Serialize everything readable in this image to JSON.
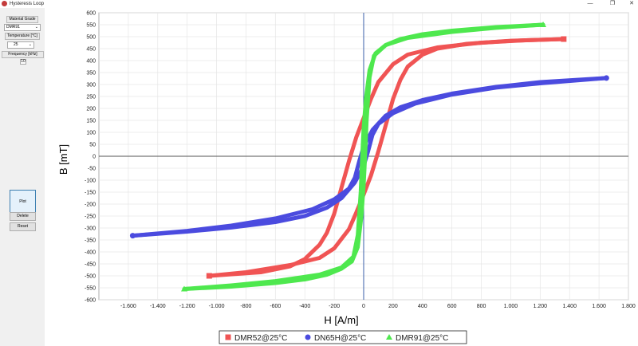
{
  "window": {
    "title": "Hysteresis Loop",
    "minimize": "—",
    "maximize": "❐",
    "close": "✕"
  },
  "sidebar": {
    "material_label": "Material Grade",
    "material_value": "DMR91",
    "temperature_label": "Temperature [°C]",
    "temperature_value": "25",
    "frequency_label": "Frequency [kHz]",
    "frequency_value": "10",
    "plot_button": "Plot",
    "delete_button": "Delete",
    "reset_button": "Reset"
  },
  "colors": {
    "DMR52": "#f05454",
    "DN65H": "#4b4bdf",
    "DMR91": "#4ee84e",
    "grid": "#e6e6e6",
    "axis": "#3a5fa8"
  },
  "icons": {
    "chevron": "chevron-down-icon",
    "app": "app-icon"
  },
  "chart_data": {
    "type": "scatter",
    "xlabel": "H [A/m]",
    "ylabel": "B [mT]",
    "xlim": [
      -1800,
      1800
    ],
    "ylim": [
      -600,
      600
    ],
    "x_ticks": [
      -1600,
      -1400,
      -1200,
      -1000,
      -800,
      -600,
      -400,
      -200,
      0,
      200,
      400,
      600,
      800,
      1000,
      1200,
      1400,
      1600,
      1800
    ],
    "x_tick_labels": [
      "-1.600",
      "-1.400",
      "-1.200",
      "-1.000",
      "-800",
      "-600",
      "-400",
      "-200",
      "0",
      "200",
      "400",
      "600",
      "800",
      "1.000",
      "1.200",
      "1.400",
      "1.600",
      "1.800"
    ],
    "y_ticks": [
      -600,
      -550,
      -500,
      -450,
      -400,
      -350,
      -300,
      -250,
      -200,
      -150,
      -100,
      -50,
      0,
      50,
      100,
      150,
      200,
      250,
      300,
      350,
      400,
      450,
      500,
      550,
      600
    ],
    "grid": true,
    "legend": "bottom-center",
    "series": [
      {
        "name": "DMR52@25°C",
        "marker": "square",
        "upper": [
          [
            -1050,
            -500
          ],
          [
            -700,
            -485
          ],
          [
            -500,
            -460
          ],
          [
            -400,
            -430
          ],
          [
            -300,
            -370
          ],
          [
            -250,
            -320
          ],
          [
            -200,
            -240
          ],
          [
            -150,
            -130
          ],
          [
            -100,
            -20
          ],
          [
            -50,
            80
          ],
          [
            0,
            160
          ],
          [
            50,
            240
          ],
          [
            100,
            310
          ],
          [
            200,
            385
          ],
          [
            300,
            425
          ],
          [
            500,
            455
          ],
          [
            800,
            475
          ],
          [
            1100,
            485
          ],
          [
            1360,
            490
          ]
        ],
        "lower": [
          [
            1360,
            490
          ],
          [
            1000,
            483
          ],
          [
            700,
            470
          ],
          [
            500,
            450
          ],
          [
            400,
            425
          ],
          [
            300,
            375
          ],
          [
            250,
            320
          ],
          [
            200,
            240
          ],
          [
            150,
            130
          ],
          [
            100,
            20
          ],
          [
            50,
            -80
          ],
          [
            0,
            -160
          ],
          [
            -50,
            -235
          ],
          [
            -100,
            -305
          ],
          [
            -200,
            -385
          ],
          [
            -300,
            -425
          ],
          [
            -500,
            -455
          ],
          [
            -800,
            -485
          ],
          [
            -1050,
            -500
          ]
        ]
      },
      {
        "name": "DN65H@25°C",
        "marker": "circle",
        "upper": [
          [
            -1570,
            -332
          ],
          [
            -1200,
            -315
          ],
          [
            -900,
            -298
          ],
          [
            -600,
            -275
          ],
          [
            -400,
            -250
          ],
          [
            -250,
            -215
          ],
          [
            -150,
            -175
          ],
          [
            -60,
            -110
          ],
          [
            0,
            -40
          ],
          [
            30,
            20
          ],
          [
            60,
            90
          ],
          [
            100,
            135
          ],
          [
            200,
            180
          ],
          [
            350,
            220
          ],
          [
            600,
            258
          ],
          [
            900,
            287
          ],
          [
            1200,
            305
          ],
          [
            1650,
            327
          ]
        ],
        "lower": [
          [
            1650,
            327
          ],
          [
            1200,
            310
          ],
          [
            900,
            290
          ],
          [
            600,
            262
          ],
          [
            400,
            235
          ],
          [
            250,
            205
          ],
          [
            150,
            170
          ],
          [
            60,
            110
          ],
          [
            0,
            40
          ],
          [
            -30,
            -20
          ],
          [
            -60,
            -90
          ],
          [
            -100,
            -135
          ],
          [
            -200,
            -180
          ],
          [
            -350,
            -222
          ],
          [
            -600,
            -260
          ],
          [
            -900,
            -290
          ],
          [
            -1200,
            -312
          ],
          [
            -1570,
            -332
          ]
        ]
      },
      {
        "name": "DMR91@25°C",
        "marker": "triangle",
        "upper": [
          [
            -1220,
            -555
          ],
          [
            -900,
            -545
          ],
          [
            -600,
            -530
          ],
          [
            -400,
            -515
          ],
          [
            -250,
            -495
          ],
          [
            -150,
            -470
          ],
          [
            -80,
            -440
          ],
          [
            -40,
            -380
          ],
          [
            -15,
            -250
          ],
          [
            0,
            -120
          ],
          [
            10,
            0
          ],
          [
            20,
            150
          ],
          [
            40,
            330
          ],
          [
            70,
            420
          ],
          [
            150,
            465
          ],
          [
            300,
            495
          ],
          [
            600,
            520
          ],
          [
            900,
            537
          ],
          [
            1220,
            550
          ]
        ],
        "lower": [
          [
            1220,
            550
          ],
          [
            900,
            540
          ],
          [
            600,
            525
          ],
          [
            400,
            510
          ],
          [
            250,
            490
          ],
          [
            150,
            465
          ],
          [
            80,
            430
          ],
          [
            40,
            360
          ],
          [
            15,
            240
          ],
          [
            0,
            120
          ],
          [
            -10,
            0
          ],
          [
            -20,
            -150
          ],
          [
            -40,
            -330
          ],
          [
            -70,
            -420
          ],
          [
            -150,
            -465
          ],
          [
            -300,
            -495
          ],
          [
            -600,
            -522
          ],
          [
            -900,
            -540
          ],
          [
            -1220,
            -555
          ]
        ]
      }
    ]
  }
}
